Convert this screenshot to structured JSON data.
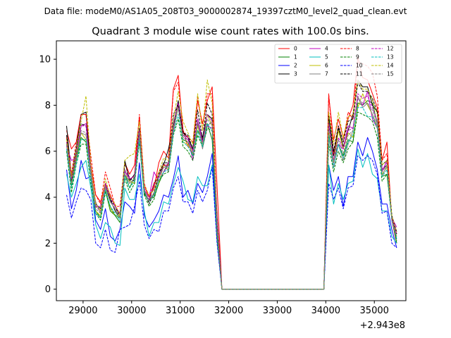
{
  "chart_data": {
    "type": "line",
    "suptitle": "Data file: modeM0/AS1A05_208T03_9000002874_19397cztM0_level2_quad_clean.evt",
    "title": "Quadrant 3 module wise count rates with 100.0s bins.",
    "xlabel": "",
    "ylabel": "",
    "x_offset_label": "+2.943e8",
    "xlim": [
      28450,
      35650
    ],
    "ylim": [
      -0.5,
      10.8
    ],
    "xticks": [
      29000,
      30000,
      31000,
      32000,
      33000,
      34000,
      35000
    ],
    "xtick_labels": [
      "29000",
      "30000",
      "31000",
      "32000",
      "33000",
      "34000",
      "35000"
    ],
    "yticks": [
      0,
      2,
      4,
      6,
      8,
      10
    ],
    "ytick_labels": [
      "0",
      "2",
      "4",
      "6",
      "8",
      "10"
    ],
    "legend_position": "top-right",
    "x": [
      28660,
      28760,
      28860,
      28960,
      29060,
      29160,
      29260,
      29360,
      29460,
      29560,
      29660,
      29760,
      29860,
      29960,
      30060,
      30160,
      30260,
      30360,
      30460,
      30560,
      30660,
      30760,
      30860,
      30960,
      31060,
      31160,
      31260,
      31360,
      31460,
      31560,
      31660,
      31760,
      31860,
      31960,
      32060,
      32160,
      32260,
      32360,
      32460,
      32560,
      32660,
      32760,
      32860,
      32960,
      33060,
      33160,
      33260,
      33360,
      33460,
      33560,
      33660,
      33760,
      33860,
      33960,
      34060,
      34160,
      34260,
      34360,
      34460,
      34560,
      34660,
      34760,
      34860,
      34960,
      35060,
      35160,
      35260,
      35360,
      35460
    ],
    "series": [
      {
        "name": "0",
        "color": "#ff0000",
        "dash": false,
        "values": [
          6.9,
          6.1,
          6.4,
          7.6,
          7.6,
          5.4,
          4.1,
          3.8,
          4.6,
          4.1,
          3.6,
          3.3,
          5.5,
          5.0,
          5.4,
          7.5,
          4.5,
          4.0,
          4.4,
          5.5,
          6.0,
          5.7,
          8.7,
          9.3,
          6.9,
          6.2,
          6.1,
          8.2,
          7.2,
          8.2,
          8.8,
          4.5,
          0,
          0,
          0,
          0,
          0,
          0,
          0,
          0,
          0,
          0,
          0,
          0,
          0,
          0,
          0,
          0,
          0,
          0,
          0,
          0,
          0,
          0,
          8.4,
          6.5,
          7.4,
          6.6,
          7.4,
          8.0,
          10.1,
          9.2,
          9.1,
          8.5,
          7.9,
          5.6,
          6.4,
          3.0,
          2.0
        ]
      },
      {
        "name": "1",
        "color": "#008000",
        "dash": false,
        "values": [
          6.3,
          4.5,
          5.6,
          6.6,
          6.4,
          5.1,
          3.4,
          3.1,
          4.3,
          3.4,
          3.2,
          2.9,
          5.0,
          4.4,
          4.9,
          6.5,
          4.1,
          3.9,
          4.0,
          4.6,
          5.1,
          5.5,
          7.1,
          7.9,
          6.5,
          6.4,
          5.8,
          6.9,
          6.5,
          7.2,
          6.5,
          2.4,
          0,
          0,
          0,
          0,
          0,
          0,
          0,
          0,
          0,
          0,
          0,
          0,
          0,
          0,
          0,
          0,
          0,
          0,
          0,
          0,
          0,
          0,
          6.7,
          5.6,
          6.3,
          5.8,
          6.5,
          6.4,
          8.1,
          8.0,
          8.2,
          8.1,
          7.2,
          4.9,
          5.0,
          3.2,
          2.0
        ]
      },
      {
        "name": "2",
        "color": "#0000ff",
        "dash": false,
        "values": [
          5.2,
          3.5,
          4.3,
          5.6,
          4.8,
          4.9,
          3.0,
          2.6,
          3.5,
          2.3,
          2.1,
          2.6,
          3.8,
          3.6,
          3.3,
          5.5,
          3.2,
          2.7,
          3.0,
          3.4,
          4.1,
          4.0,
          4.8,
          5.8,
          4.0,
          4.3,
          3.7,
          4.6,
          4.2,
          4.9,
          5.9,
          2.3,
          0,
          0,
          0,
          0,
          0,
          0,
          0,
          0,
          0,
          0,
          0,
          0,
          0,
          0,
          0,
          0,
          0,
          0,
          0,
          0,
          0,
          0,
          5.4,
          4.3,
          4.9,
          3.6,
          4.9,
          4.9,
          6.4,
          5.8,
          6.6,
          6.0,
          5.2,
          3.7,
          3.7,
          2.6,
          1.8
        ]
      },
      {
        "name": "3",
        "color": "#000000",
        "dash": false,
        "values": [
          7.1,
          4.9,
          6.1,
          7.6,
          7.7,
          5.1,
          3.7,
          3.5,
          4.5,
          3.9,
          3.4,
          3.1,
          5.6,
          4.7,
          5.0,
          7.0,
          4.2,
          3.8,
          4.6,
          4.9,
          5.4,
          6.1,
          7.1,
          8.2,
          6.8,
          6.6,
          6.1,
          7.2,
          6.6,
          7.6,
          7.4,
          3.2,
          0,
          0,
          0,
          0,
          0,
          0,
          0,
          0,
          0,
          0,
          0,
          0,
          0,
          0,
          0,
          0,
          0,
          0,
          0,
          0,
          0,
          0,
          7.5,
          5.8,
          7.0,
          6.2,
          6.9,
          7.6,
          9.1,
          8.8,
          8.8,
          8.0,
          7.7,
          5.2,
          5.4,
          3.2,
          2.5
        ]
      },
      {
        "name": "4",
        "color": "#c000c0",
        "dash": false,
        "values": [
          6.2,
          5.6,
          5.7,
          7.1,
          7.2,
          5.1,
          3.6,
          3.6,
          4.5,
          3.8,
          3.5,
          3.3,
          5.1,
          4.8,
          4.9,
          6.7,
          4.3,
          4.0,
          5.1,
          4.7,
          5.1,
          5.4,
          6.8,
          8.0,
          6.7,
          6.6,
          5.6,
          7.4,
          6.4,
          7.1,
          7.0,
          3.1,
          0,
          0,
          0,
          0,
          0,
          0,
          0,
          0,
          0,
          0,
          0,
          0,
          0,
          0,
          0,
          0,
          0,
          0,
          0,
          0,
          0,
          0,
          7.1,
          5.3,
          6.3,
          6.1,
          7.1,
          7.0,
          8.3,
          8.0,
          8.6,
          7.4,
          7.0,
          5.1,
          5.6,
          3.1,
          2.7
        ]
      },
      {
        "name": "5",
        "color": "#00bfbf",
        "dash": false,
        "values": [
          5.0,
          4.0,
          4.6,
          5.3,
          5.6,
          4.4,
          2.8,
          2.2,
          2.9,
          2.7,
          2.0,
          1.9,
          4.4,
          3.9,
          3.9,
          5.0,
          3.4,
          2.3,
          2.9,
          2.9,
          3.8,
          3.7,
          4.6,
          5.3,
          4.7,
          3.9,
          3.8,
          4.9,
          4.5,
          4.5,
          5.4,
          2.1,
          0,
          0,
          0,
          0,
          0,
          0,
          0,
          0,
          0,
          0,
          0,
          0,
          0,
          0,
          0,
          0,
          0,
          0,
          0,
          0,
          0,
          0,
          5.4,
          3.7,
          4.6,
          3.9,
          4.6,
          4.7,
          6.1,
          5.3,
          5.9,
          5.0,
          4.8,
          3.4,
          3.4,
          2.3,
          2.0
        ]
      },
      {
        "name": "6",
        "color": "#bfbf00",
        "dash": false,
        "values": [
          6.6,
          4.6,
          5.7,
          6.8,
          6.5,
          5.0,
          3.4,
          3.2,
          4.4,
          3.5,
          3.2,
          3.2,
          5.0,
          4.7,
          4.6,
          6.7,
          4.3,
          3.8,
          4.2,
          4.6,
          5.4,
          5.2,
          6.9,
          8.0,
          6.4,
          6.3,
          5.9,
          7.1,
          6.3,
          7.6,
          7.1,
          2.5,
          0,
          0,
          0,
          0,
          0,
          0,
          0,
          0,
          0,
          0,
          0,
          0,
          0,
          0,
          0,
          0,
          0,
          0,
          0,
          0,
          0,
          0,
          6.9,
          5.5,
          6.9,
          6.1,
          6.8,
          6.6,
          7.9,
          8.5,
          8.0,
          7.6,
          7.0,
          5.0,
          5.3,
          3.1,
          2.3
        ]
      },
      {
        "name": "7",
        "color": "#808080",
        "dash": false,
        "values": [
          6.4,
          4.7,
          5.8,
          6.8,
          6.7,
          5.0,
          3.8,
          3.3,
          4.4,
          3.8,
          3.5,
          3.2,
          5.0,
          4.6,
          4.8,
          6.7,
          4.3,
          4.0,
          4.1,
          4.9,
          5.5,
          5.1,
          6.9,
          7.9,
          6.7,
          6.5,
          6.0,
          7.3,
          6.1,
          7.1,
          7.3,
          2.8,
          0,
          0,
          0,
          0,
          0,
          0,
          0,
          0,
          0,
          0,
          0,
          0,
          0,
          0,
          0,
          0,
          0,
          0,
          0,
          0,
          0,
          0,
          6.6,
          5.3,
          6.3,
          5.6,
          6.3,
          6.9,
          8.4,
          7.9,
          8.1,
          7.6,
          7.1,
          4.9,
          5.4,
          3.0,
          2.2
        ]
      },
      {
        "name": "8",
        "color": "#ff0000",
        "dash": true,
        "values": [
          6.6,
          5.0,
          6.4,
          7.6,
          7.6,
          5.8,
          4.1,
          3.7,
          5.1,
          4.4,
          3.6,
          3.6,
          5.5,
          4.8,
          4.9,
          7.6,
          4.6,
          4.0,
          4.6,
          5.1,
          5.4,
          5.4,
          8.6,
          9.0,
          6.9,
          6.6,
          6.4,
          8.4,
          6.9,
          8.5,
          8.5,
          3.0,
          0,
          0,
          0,
          0,
          0,
          0,
          0,
          0,
          0,
          0,
          0,
          0,
          0,
          0,
          0,
          0,
          0,
          0,
          0,
          0,
          0,
          0,
          8.5,
          5.9,
          7.1,
          6.4,
          7.7,
          7.4,
          9.9,
          9.8,
          9.7,
          9.4,
          8.4,
          5.6,
          5.9,
          3.1,
          2.4
        ]
      },
      {
        "name": "9",
        "color": "#008000",
        "dash": true,
        "values": [
          6.0,
          4.2,
          5.4,
          6.3,
          6.3,
          4.6,
          3.3,
          3.0,
          4.2,
          3.6,
          3.2,
          3.1,
          4.8,
          4.2,
          4.6,
          6.4,
          4.1,
          3.6,
          3.9,
          4.7,
          5.0,
          5.1,
          6.7,
          7.4,
          6.2,
          6.0,
          5.6,
          6.7,
          6.2,
          7.0,
          6.9,
          2.3,
          0,
          0,
          0,
          0,
          0,
          0,
          0,
          0,
          0,
          0,
          0,
          0,
          0,
          0,
          0,
          0,
          0,
          0,
          0,
          0,
          0,
          0,
          6.3,
          5.1,
          6.0,
          5.5,
          6.1,
          6.4,
          7.7,
          7.6,
          7.5,
          7.3,
          6.6,
          4.7,
          5.0,
          3.0,
          2.1
        ]
      },
      {
        "name": "10",
        "color": "#0000ff",
        "dash": true,
        "values": [
          4.1,
          3.1,
          3.8,
          4.4,
          4.3,
          3.9,
          2.0,
          1.8,
          2.6,
          1.7,
          1.6,
          2.6,
          2.7,
          2.8,
          3.6,
          4.7,
          2.8,
          2.2,
          2.6,
          2.5,
          3.4,
          3.4,
          4.4,
          4.9,
          3.8,
          3.8,
          3.3,
          4.3,
          3.8,
          4.3,
          5.3,
          2.0,
          0,
          0,
          0,
          0,
          0,
          0,
          0,
          0,
          0,
          0,
          0,
          0,
          0,
          0,
          0,
          0,
          0,
          0,
          0,
          0,
          0,
          0,
          4.6,
          3.9,
          4.4,
          3.5,
          4.4,
          4.5,
          5.8,
          5.6,
          5.8,
          5.6,
          5.0,
          3.3,
          3.4,
          2.0,
          1.8
        ]
      },
      {
        "name": "11",
        "color": "#000000",
        "dash": true,
        "values": [
          6.7,
          4.7,
          5.9,
          7.2,
          7.1,
          5.3,
          3.6,
          3.4,
          4.6,
          3.9,
          3.6,
          3.2,
          5.5,
          4.8,
          4.7,
          6.9,
          4.3,
          3.7,
          4.2,
          5.0,
          5.5,
          5.5,
          7.6,
          8.0,
          6.8,
          6.7,
          6.1,
          7.8,
          6.5,
          8.1,
          7.6,
          2.8,
          0,
          0,
          0,
          0,
          0,
          0,
          0,
          0,
          0,
          0,
          0,
          0,
          0,
          0,
          0,
          0,
          0,
          0,
          0,
          0,
          0,
          0,
          7.6,
          6.0,
          7.1,
          6.4,
          7.3,
          7.4,
          9.0,
          8.6,
          8.6,
          8.3,
          7.7,
          5.4,
          5.6,
          3.2,
          2.4
        ]
      },
      {
        "name": "12",
        "color": "#c000c0",
        "dash": true,
        "values": [
          6.4,
          4.8,
          5.9,
          7.1,
          7.1,
          5.2,
          3.6,
          3.4,
          4.6,
          4.0,
          3.6,
          3.3,
          5.2,
          4.8,
          4.9,
          6.9,
          4.4,
          3.9,
          4.5,
          4.9,
          5.3,
          5.5,
          7.2,
          8.1,
          6.6,
          6.5,
          6.0,
          7.4,
          6.4,
          7.6,
          7.3,
          2.8,
          0,
          0,
          0,
          0,
          0,
          0,
          0,
          0,
          0,
          0,
          0,
          0,
          0,
          0,
          0,
          0,
          0,
          0,
          0,
          0,
          0,
          0,
          7.2,
          5.6,
          6.6,
          6.1,
          6.9,
          7.0,
          8.5,
          8.3,
          8.4,
          7.9,
          7.3,
          5.2,
          5.5,
          3.1,
          2.4
        ]
      },
      {
        "name": "13",
        "color": "#00bfbf",
        "dash": true,
        "values": [
          6.1,
          4.4,
          5.4,
          6.5,
          6.5,
          4.8,
          3.3,
          3.1,
          4.3,
          3.6,
          3.3,
          3.0,
          4.9,
          4.4,
          4.7,
          6.5,
          4.2,
          3.8,
          4.1,
          4.7,
          5.1,
          5.2,
          6.8,
          7.6,
          6.4,
          6.2,
          5.8,
          6.9,
          6.2,
          7.2,
          6.9,
          2.6,
          0,
          0,
          0,
          0,
          0,
          0,
          0,
          0,
          0,
          0,
          0,
          0,
          0,
          0,
          0,
          0,
          0,
          0,
          0,
          0,
          0,
          0,
          6.7,
          5.3,
          6.3,
          5.7,
          6.4,
          6.7,
          7.9,
          7.9,
          7.5,
          7.5,
          7.0,
          4.9,
          5.2,
          3.0,
          2.2
        ]
      },
      {
        "name": "14",
        "color": "#bfbf00",
        "dash": true,
        "values": [
          6.5,
          4.9,
          6.0,
          7.3,
          8.4,
          5.4,
          3.7,
          3.4,
          4.8,
          4.0,
          3.7,
          3.2,
          5.6,
          5.8,
          5.9,
          7.3,
          4.5,
          4.1,
          4.3,
          5.1,
          5.7,
          5.6,
          7.4,
          8.6,
          7.3,
          6.8,
          6.3,
          8.5,
          6.9,
          9.1,
          8.1,
          2.6,
          0,
          0,
          0,
          0,
          0,
          0,
          0,
          0,
          0,
          0,
          0,
          0,
          0,
          0,
          0,
          0,
          0,
          0,
          0,
          0,
          0,
          0,
          7.7,
          6.3,
          7.7,
          6.6,
          7.5,
          7.6,
          9.1,
          8.7,
          8.7,
          8.2,
          7.6,
          5.4,
          5.6,
          3.2,
          2.5
        ]
      },
      {
        "name": "15",
        "color": "#808080",
        "dash": true,
        "values": [
          6.3,
          4.6,
          5.7,
          6.9,
          6.8,
          5.1,
          3.5,
          3.3,
          4.5,
          3.8,
          3.5,
          3.1,
          5.2,
          4.6,
          4.8,
          6.8,
          4.3,
          3.8,
          4.2,
          4.8,
          5.3,
          5.3,
          7.0,
          7.9,
          6.6,
          6.4,
          5.9,
          7.2,
          6.3,
          7.4,
          7.1,
          2.7,
          0,
          0,
          0,
          0,
          0,
          0,
          0,
          0,
          0,
          0,
          0,
          0,
          0,
          0,
          0,
          0,
          0,
          0,
          0,
          0,
          0,
          0,
          7.0,
          5.5,
          6.5,
          5.9,
          6.7,
          6.9,
          8.3,
          8.1,
          8.1,
          7.8,
          7.2,
          5.1,
          5.4,
          3.0,
          2.3
        ]
      }
    ]
  }
}
